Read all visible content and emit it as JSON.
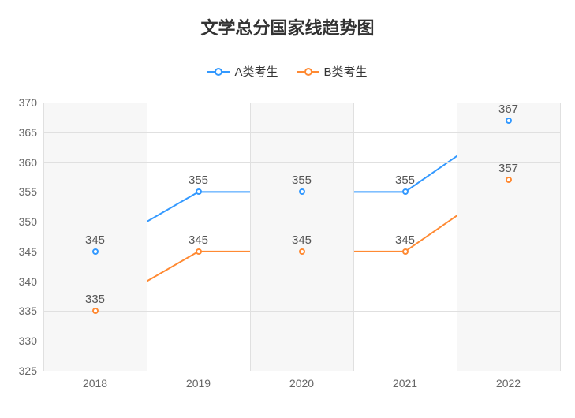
{
  "chart": {
    "type": "line",
    "title": "文学总分国家线趋势图",
    "title_fontsize": 22,
    "title_color": "#333333",
    "background_color": "#ffffff",
    "plot_background_alt_color": "#f7f7f7",
    "grid_color": "#e0e0e0",
    "axis_label_color": "#666666",
    "axis_label_fontsize": 14,
    "data_label_fontsize": 15,
    "data_label_color": "#555555",
    "x_categories": [
      "2018",
      "2019",
      "2020",
      "2021",
      "2022"
    ],
    "y_min": 325,
    "y_max": 370,
    "y_tick_step": 5,
    "y_ticks": [
      325,
      330,
      335,
      340,
      345,
      350,
      355,
      360,
      365,
      370
    ],
    "line_width": 2,
    "marker_radius": 4,
    "marker_border_width": 2,
    "series": [
      {
        "name": "A类考生",
        "color": "#3399ff",
        "values": [
          345,
          355,
          355,
          355,
          367
        ]
      },
      {
        "name": "B类考生",
        "color": "#ff8a33",
        "values": [
          335,
          345,
          345,
          345,
          357
        ]
      }
    ],
    "legend": {
      "position": "top",
      "fontsize": 15
    }
  }
}
